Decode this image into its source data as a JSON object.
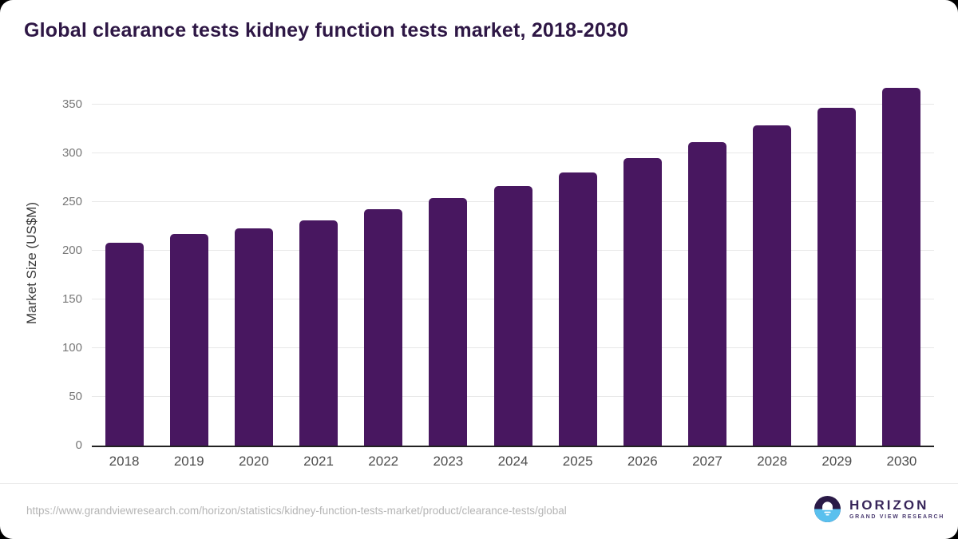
{
  "header": {
    "title": "Global clearance tests kidney function tests market, 2018-2030"
  },
  "chart_data": {
    "type": "bar",
    "title": "Global clearance tests kidney function tests market, 2018-2030",
    "categories": [
      "2018",
      "2019",
      "2020",
      "2021",
      "2022",
      "2023",
      "2024",
      "2025",
      "2026",
      "2027",
      "2028",
      "2029",
      "2030"
    ],
    "values": [
      208,
      217,
      223,
      231,
      242,
      254,
      266,
      280,
      295,
      311,
      328,
      346,
      367
    ],
    "xlabel": "",
    "ylabel": "Market Size (US$M)",
    "ylim": [
      0,
      375
    ],
    "yticks": [
      0,
      50,
      100,
      150,
      200,
      250,
      300,
      350
    ],
    "grid": true,
    "legend": "none",
    "bar_color": "#481760"
  },
  "colors": {
    "title": "#2e1745",
    "bar": "#481760",
    "gridline": "#e8e8e8",
    "axis_line": "#222222",
    "x_label": "#4d4d4d",
    "y_tick": "#777777",
    "url_text": "#b5b5b5",
    "logo_dark": "#2a1a47",
    "logo_blue": "#5ac0ee",
    "logo_text": "#38265a"
  },
  "footer": {
    "source_url": "https://www.grandviewresearch.com/horizon/statistics/kidney-function-tests-market/product/clearance-tests/global",
    "logo": {
      "name": "HORIZON",
      "subtitle": "GRAND VIEW RESEARCH",
      "icon": "sunrise-horizon-icon"
    }
  }
}
